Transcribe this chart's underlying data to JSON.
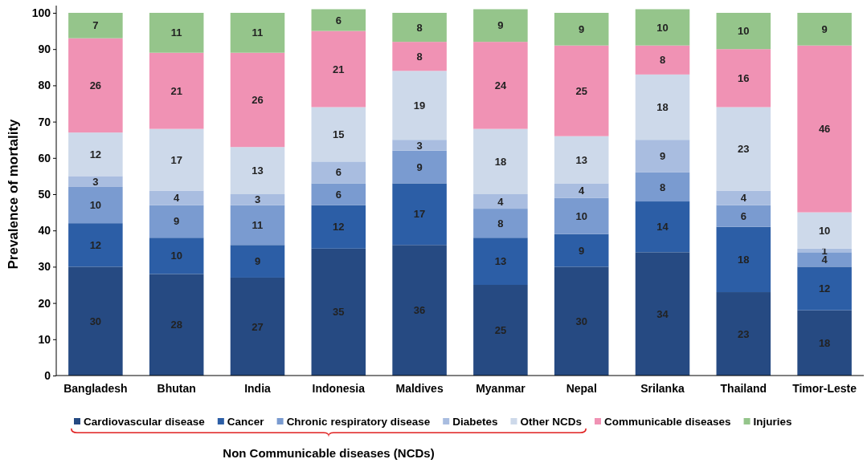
{
  "chart_data": {
    "type": "bar",
    "stacked": true,
    "ylabel": "Prevalence of mortality",
    "categories": [
      "Bangladesh",
      "Bhutan",
      "India",
      "Indonesia",
      "Maldives",
      "Myanmar",
      "Nepal",
      "Srilanka",
      "Thailand",
      "Timor-Leste"
    ],
    "series": [
      {
        "name": "Cardiovascular disease",
        "color": "#264a82",
        "values": [
          30,
          28,
          27,
          35,
          36,
          25,
          30,
          34,
          23,
          18
        ]
      },
      {
        "name": "Cancer",
        "color": "#2c5ea6",
        "values": [
          12,
          10,
          9,
          12,
          17,
          13,
          9,
          14,
          18,
          12
        ]
      },
      {
        "name": "Chronic respiratory disease",
        "color": "#7a9bd0",
        "values": [
          10,
          9,
          11,
          6,
          9,
          8,
          10,
          8,
          6,
          4
        ]
      },
      {
        "name": "Diabetes",
        "color": "#a9bde0",
        "values": [
          3,
          4,
          3,
          6,
          3,
          4,
          4,
          9,
          4,
          1
        ]
      },
      {
        "name": "Other NCDs",
        "color": "#cdd9ea",
        "values": [
          12,
          17,
          13,
          15,
          19,
          18,
          13,
          18,
          23,
          10
        ]
      },
      {
        "name": "Communicable diseases",
        "color": "#f092b4",
        "values": [
          26,
          21,
          26,
          21,
          8,
          24,
          25,
          8,
          16,
          46
        ]
      },
      {
        "name": "Injuries",
        "color": "#95c58b",
        "values": [
          7,
          11,
          11,
          6,
          8,
          9,
          9,
          10,
          10,
          9
        ]
      }
    ],
    "ylim": [
      0,
      102
    ],
    "yticks": [
      0,
      10,
      20,
      30,
      40,
      50,
      60,
      70,
      80,
      90,
      100
    ],
    "data_labels": true,
    "legend": "bottom",
    "grid": false,
    "annotations": [
      "Non Communicable diseases (NCDs)"
    ]
  }
}
